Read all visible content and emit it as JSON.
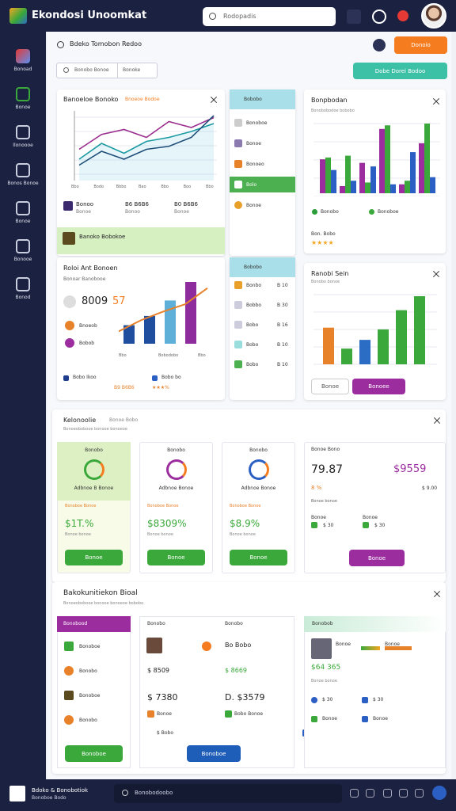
{
  "app": {
    "title": "Ekondosi Unoomkat",
    "search": "Rodopadis"
  },
  "nav": [
    "Bonoad",
    "Bonoe",
    "Ilonoooe",
    "Bonos Bonoe",
    "Bonoe",
    "Bonooe",
    "Bonod"
  ],
  "header": {
    "title": "Bdeko Tomobon Redoo",
    "button": "Donoio",
    "filters": [
      "Bonobo Bonoe",
      "Bonoke"
    ],
    "action": "Dobe Dorei Bodoo"
  },
  "performance": {
    "title": "Banoeloe Bonoko",
    "tag": "Bnoeoe Bodoe",
    "x_labels": [
      "Bbo",
      "Bodo",
      "Bbbo",
      "Bao",
      "Bbo",
      "Boo",
      "Bbo"
    ],
    "lines": [
      {
        "color": "#9b2d8e",
        "values": [
          30,
          45,
          50,
          42,
          58,
          52,
          62
        ]
      },
      {
        "color": "#1a9aa0",
        "values": [
          20,
          36,
          26,
          38,
          42,
          48,
          56
        ]
      },
      {
        "color": "#1f4e79",
        "values": [
          14,
          28,
          20,
          30,
          33,
          42,
          64
        ]
      }
    ],
    "stats": [
      {
        "value": "Bonoo",
        "label": "Bonoe"
      },
      {
        "value": "B6 B6B6",
        "label": "Bonoo"
      },
      {
        "value": "B0 B6B6",
        "label": "Bonoe"
      }
    ],
    "banner": "Banoko Bobokoe"
  },
  "list_one": {
    "header": "Bobobo",
    "items": [
      "Bonoboe",
      "Bonoe",
      "Bonoeo",
      "Bolo",
      "Bonoe"
    ]
  },
  "revenue": {
    "title": "Bonpbodan",
    "subtitle": "Bonobobodoe bobobo",
    "series": [
      {
        "color": "#9b2d9e",
        "values": [
          38,
          8,
          34,
          72,
          10,
          56
        ]
      },
      {
        "color": "#3aa83a",
        "values": [
          40,
          42,
          12,
          76,
          14,
          78
        ]
      },
      {
        "color": "#2b5fc4",
        "values": [
          26,
          14,
          30,
          10,
          46,
          18
        ]
      }
    ],
    "legend": [
      "Bonobo",
      "Bonoboe"
    ],
    "rating_label": "Bon. Bobo",
    "rating": "★★★★"
  },
  "growth": {
    "title": "Roloi Ant Bonoen",
    "subtitle": "Bonoar Banobooe",
    "big": "8009",
    "big_accent": "57",
    "rows": [
      "Bnoeob",
      "Bobob"
    ],
    "bars": [
      30,
      45,
      70,
      100
    ],
    "bar_colors": [
      "#1f4e9e",
      "#1f4e9e",
      "#5fb0d8",
      "#8e2c9e"
    ],
    "line": [
      20,
      38,
      52,
      64,
      90
    ],
    "x_labels": [
      "Bbo",
      "Bobodobo",
      "Bbo"
    ],
    "legend": [
      {
        "label": "Bobo Ikoo",
        "value": "B9 B6B6"
      },
      {
        "label": "Bobo bo",
        "value": "★★★%"
      }
    ]
  },
  "list_two": {
    "header": "Bobobo",
    "items": [
      {
        "label": "Bonbo",
        "value": "B 10"
      },
      {
        "label": "Bobbo",
        "value": "B 30"
      },
      {
        "label": "Bobo",
        "value": "B 16"
      },
      {
        "label": "Bobo",
        "value": "B 10"
      },
      {
        "label": "Bobo",
        "value": "B 10"
      }
    ]
  },
  "sales": {
    "title": "Ranobi Sein",
    "subtitle": "Bonobo bonoe",
    "values": [
      42,
      18,
      28,
      40,
      62,
      78
    ],
    "colors": [
      "#e8822a",
      "#3aa83a",
      "#2b6cc4",
      "#3aa83a",
      "#3aa83a",
      "#3aa83a"
    ],
    "buttons": [
      "Bonoe",
      "Bonoee"
    ]
  },
  "kpi": {
    "title": "Kelonoolie",
    "tag": "Bonoe Bobo",
    "subtitle": "Bonoeobobooe bonooe bonoeoe",
    "cards": [
      {
        "title": "Bonobo",
        "caption": "Adbnoe B Bonoe",
        "sub": "Bonoboe Bonoe",
        "value": "$1T.%",
        "note": "Bonoe bonoe",
        "button": "Bonoe"
      },
      {
        "title": "Bonobo",
        "caption": "Adbnoe Bonoe",
        "sub": "Bonoboe Bonoe",
        "value": "$8309%",
        "note": "Bonoe bonoe",
        "button": "Bonoe"
      },
      {
        "title": "Bonobo",
        "caption": "Adbnoe Bonoe",
        "sub": "Bonoboe Bonoe",
        "value": "$8.9%",
        "note": "Bonoe bonoe",
        "button": "Bonoe"
      }
    ],
    "summary": {
      "title": "Bonoe Bono",
      "value": "79.87",
      "value_accent": "$9559",
      "delta": "8 %",
      "delta2": "$ 9.00",
      "sub": "Bonoe bonoe",
      "rows": [
        {
          "label": "Bonoe",
          "value": "$ 30"
        },
        {
          "label": "Bonoe",
          "value": "$ 30"
        }
      ],
      "button": "Bonoe"
    }
  },
  "bottom": {
    "title": "Bakokunitiekon Bioal",
    "subtitle": "Bonoeobobooe bonooe bonoeoe bobobo",
    "list": {
      "header": "Bonobood",
      "items": [
        "Bonoboe",
        "Bonobo",
        "Bonoboe",
        "Bonobo"
      ],
      "button": "Bonoboe"
    },
    "middle": {
      "cols": [
        "Bonobo",
        "Bonobo"
      ],
      "items": [
        "Bo Bobo",
        "$ 8669",
        "$ 8509",
        "D. $3579",
        "$ 7380"
      ],
      "rows": [
        "Bonoe",
        "Bobo Bonoe",
        "$ Bobo"
      ],
      "button": "Bonoboe"
    },
    "right": {
      "header": "Bonobob",
      "items": [
        "Bonoe",
        "Bonoe"
      ],
      "value": "$64 365",
      "sub": "Bonoe bonoe",
      "rows": [
        "$ 30",
        "$ 30",
        "Bonoe",
        "Bonoe"
      ]
    }
  },
  "footer": {
    "title": "Bdoko & Bonobotiok",
    "subtitle": "Bonoboe Bodo",
    "search": "Bonobodoobo"
  }
}
